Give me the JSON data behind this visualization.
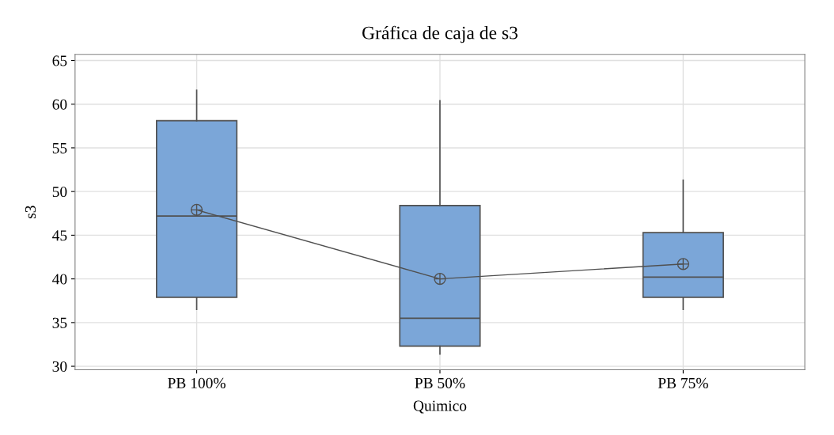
{
  "chart_data": {
    "type": "box",
    "title": "Gráfica de caja de s3",
    "xlabel": "Quimico",
    "ylabel": "s3",
    "categories": [
      "PB 100%",
      "PB 50%",
      "PB 75%"
    ],
    "boxes": [
      {
        "low": 36.5,
        "q1": 37.9,
        "median": 47.2,
        "q3": 58.1,
        "high": 61.6,
        "mean": 47.9
      },
      {
        "low": 31.4,
        "q1": 32.3,
        "median": 35.5,
        "q3": 48.4,
        "high": 60.4,
        "mean": 40.0
      },
      {
        "low": 36.5,
        "q1": 37.9,
        "median": 40.2,
        "q3": 45.3,
        "high": 51.3,
        "mean": 41.7
      }
    ],
    "color": "#7ba6d8",
    "series": [
      {
        "type": "line",
        "color": "#505050",
        "values": [
          47.9,
          40.0,
          41.7
        ],
        "marker": "none"
      }
    ],
    "ylim": [
      29.6,
      65.7
    ],
    "yticks": [
      30,
      35,
      40,
      45,
      50,
      55,
      60,
      65
    ],
    "grid": true
  }
}
